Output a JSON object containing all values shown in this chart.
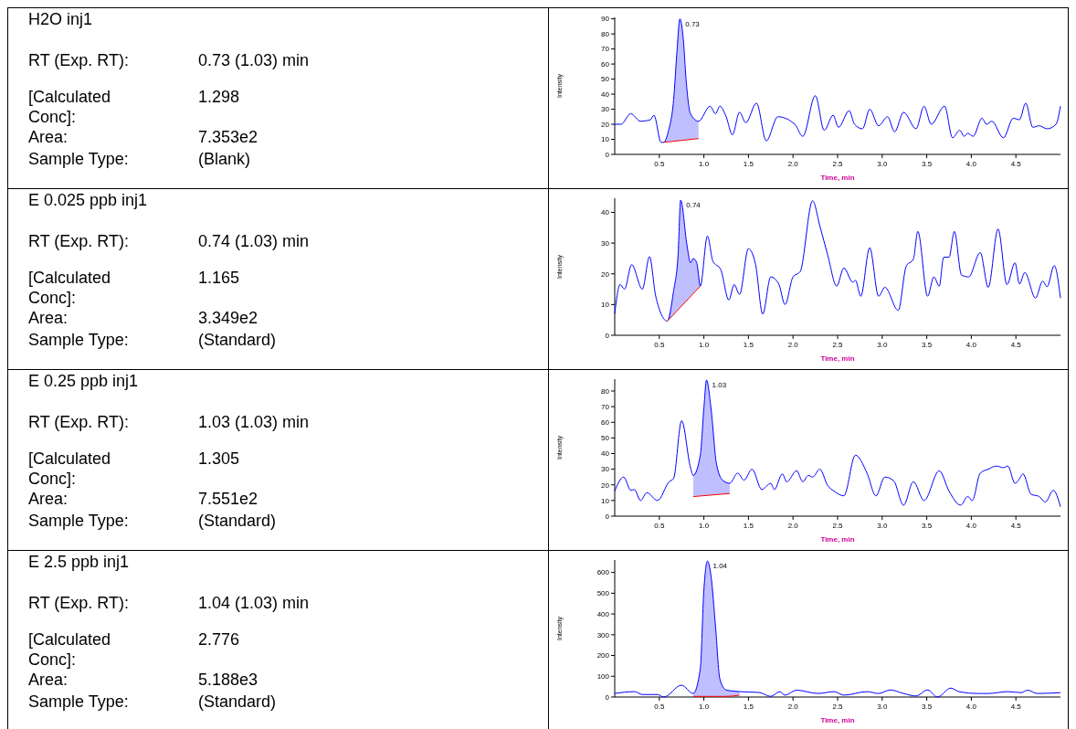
{
  "chart_data": [
    {
      "type": "other",
      "title": "H2O inj1",
      "annotations": [
        "RT (Exp. RT):",
        "0.73 (1.03) min",
        "[Calculated Conc]:",
        "1.298",
        "Area:",
        "7.353e2",
        "Sample Type:",
        "(Blank)"
      ]
    },
    {
      "type": "line",
      "xlabel": "Time, min",
      "ylabel": "Intensity",
      "xlim": [
        0,
        5
      ],
      "ylim": [
        0,
        91
      ],
      "xticks": [
        0.5,
        {
          "value": 1,
          "label": "1.0"
        },
        1.5,
        {
          "value": 2,
          "label": "2.0"
        },
        2.5,
        {
          "value": 3,
          "label": "3.0"
        },
        3.5,
        {
          "value": 4,
          "label": "4.0"
        },
        4.5
      ],
      "yticks": [
        0,
        10,
        20,
        30,
        40,
        50,
        60,
        70,
        80,
        90
      ],
      "annotations": [
        {
          "text": "0.73",
          "x": 0.73,
          "y": 90
        }
      ],
      "x": [
        0,
        0.07,
        0.18,
        0.29,
        0.4,
        0.44,
        0.52,
        0.55,
        0.6,
        0.66,
        0.7,
        0.73,
        0.77,
        0.8,
        0.85,
        0.94,
        1.07,
        1.13,
        1.18,
        1.25,
        1.32,
        1.4,
        1.47,
        1.59,
        1.7,
        1.83,
        2.02,
        2.11,
        2.25,
        2.35,
        2.45,
        2.51,
        2.63,
        2.69,
        2.78,
        2.86,
        2.96,
        3.06,
        3.14,
        3.24,
        3.38,
        3.47,
        3.55,
        3.7,
        3.79,
        3.87,
        3.92,
        3.96,
        4.02,
        4.12,
        4.17,
        4.23,
        4.36,
        4.47,
        4.54,
        4.61,
        4.69,
        4.76,
        4.85,
        4.95,
        5.0
      ],
      "series": [
        {
          "color": "#0000ff",
          "values": [
            20,
            20,
            27,
            22,
            23,
            26,
            8,
            8,
            15,
            36,
            70,
            90,
            76,
            50,
            27,
            22,
            32,
            27,
            32,
            25,
            13,
            28,
            21,
            34,
            9,
            25,
            20,
            12,
            39,
            16,
            26,
            18,
            29,
            20,
            17,
            30,
            19,
            25,
            15,
            28,
            17,
            32,
            20,
            32,
            11,
            16,
            12,
            14,
            12,
            24,
            20,
            22,
            11,
            24,
            23,
            34,
            18,
            19,
            17,
            20,
            32
          ]
        },
        {
          "type": "area",
          "color": "#0000ff",
          "x": [
            0.55,
            0.6,
            0.66,
            0.7,
            0.73,
            0.77,
            0.8,
            0.85,
            0.94
          ],
          "values": [
            8,
            15,
            36,
            70,
            90,
            76,
            50,
            27,
            22
          ]
        },
        {
          "type": "line",
          "color": "#ff0000",
          "x": [
            0.55,
            0.94
          ],
          "values": [
            8,
            10.5
          ]
        }
      ]
    },
    {
      "type": "other",
      "title": "E 0.025 ppb inj1",
      "annotations": [
        "RT (Exp. RT):",
        "0.74 (1.03) min",
        "[Calculated Conc]:",
        "1.165",
        "Area:",
        "3.349e2",
        "Sample Type:",
        "(Standard)"
      ]
    },
    {
      "type": "line",
      "xlabel": "Time, min",
      "ylabel": "Intensity",
      "xlim": [
        0,
        5
      ],
      "ylim": [
        0,
        44.6
      ],
      "xticks": [
        0.5,
        {
          "value": 1,
          "label": "1.0"
        },
        1.5,
        {
          "value": 2,
          "label": "2.0"
        },
        2.5,
        {
          "value": 3,
          "label": "3.0"
        },
        3.5,
        {
          "value": 4,
          "label": "4.0"
        },
        4.5
      ],
      "yticks": [
        0,
        10,
        20,
        30,
        40
      ],
      "annotations": [
        {
          "text": "0.74",
          "x": 0.74,
          "y": 44
        }
      ],
      "x": [
        0,
        0.06,
        0.11,
        0.19,
        0.31,
        0.39,
        0.46,
        0.59,
        0.66,
        0.71,
        0.74,
        0.81,
        0.85,
        0.88,
        0.92,
        0.96,
        1.04,
        1.1,
        1.19,
        1.28,
        1.34,
        1.4,
        1.5,
        1.58,
        1.66,
        1.75,
        1.84,
        1.91,
        2.0,
        2.08,
        2.22,
        2.3,
        2.39,
        2.49,
        2.57,
        2.67,
        2.7,
        2.76,
        2.86,
        2.96,
        3.03,
        3.18,
        3.27,
        3.35,
        3.4,
        3.51,
        3.58,
        3.64,
        3.69,
        3.75,
        3.81,
        3.89,
        3.97,
        4.1,
        4.19,
        4.3,
        4.4,
        4.49,
        4.54,
        4.6,
        4.72,
        4.8,
        4.85,
        4.93,
        5.0
      ],
      "series": [
        {
          "color": "#0000ff",
          "values": [
            7,
            16.5,
            15,
            23,
            15,
            25.6,
            12.7,
            4.6,
            14.4,
            26,
            44,
            29.4,
            23.6,
            25,
            23.6,
            16,
            32.3,
            24.2,
            21.3,
            11.5,
            16.5,
            13.3,
            28.2,
            23,
            6.9,
            19,
            16.7,
            10,
            19,
            20.7,
            43.8,
            35.7,
            26,
            16,
            21.9,
            17.3,
            17.9,
            12.7,
            28.5,
            12.7,
            15.6,
            8.1,
            22.5,
            24.8,
            33.8,
            12.7,
            19,
            16,
            25.4,
            25.4,
            33.8,
            19.6,
            19,
            26.9,
            15.6,
            34.6,
            16.5,
            23.6,
            16.7,
            20.4,
            12.1,
            17.6,
            15.8,
            22.7,
            12.1
          ]
        },
        {
          "type": "area",
          "color": "#0000ff",
          "x": [
            0.59,
            0.66,
            0.71,
            0.74,
            0.81,
            0.85,
            0.88,
            0.92,
            0.96
          ],
          "values": [
            4.6,
            14.4,
            26,
            44,
            29.4,
            23.6,
            25,
            23.6,
            16
          ]
        },
        {
          "type": "line",
          "color": "#ff0000",
          "x": [
            0.59,
            0.96
          ],
          "values": [
            4.6,
            16
          ]
        }
      ]
    },
    {
      "type": "other",
      "title": "E 0.25 ppb inj1",
      "annotations": [
        "RT (Exp. RT):",
        "1.03 (1.03) min",
        "[Calculated Conc]:",
        "1.305",
        "Area:",
        "7.551e2",
        "Sample Type:",
        "(Standard)"
      ]
    },
    {
      "type": "line",
      "xlabel": "Time, min",
      "ylabel": "Intensity",
      "xlim": [
        0,
        5
      ],
      "ylim": [
        0,
        87.6
      ],
      "xticks": [
        0.5,
        {
          "value": 1,
          "label": "1.0"
        },
        1.5,
        {
          "value": 2,
          "label": "2.0"
        },
        2.5,
        {
          "value": 3,
          "label": "3.0"
        },
        3.5,
        {
          "value": 4,
          "label": "4.0"
        },
        4.5
      ],
      "yticks": [
        0,
        10,
        20,
        30,
        40,
        50,
        60,
        70,
        80
      ],
      "annotations": [
        {
          "text": "1.03",
          "x": 1.03,
          "y": 87
        }
      ],
      "x": [
        0,
        0.1,
        0.18,
        0.22,
        0.29,
        0.36,
        0.48,
        0.61,
        0.66,
        0.75,
        0.85,
        0.88,
        0.96,
        1.0,
        1.03,
        1.08,
        1.14,
        1.21,
        1.29,
        1.38,
        1.45,
        1.54,
        1.65,
        1.75,
        1.79,
        1.88,
        1.93,
        2.04,
        2.11,
        2.17,
        2.22,
        2.3,
        2.39,
        2.46,
        2.57,
        2.7,
        2.83,
        2.93,
        3.03,
        3.13,
        3.24,
        3.35,
        3.47,
        3.64,
        3.75,
        3.88,
        3.96,
        4.01,
        4.1,
        4.19,
        4.28,
        4.36,
        4.41,
        4.49,
        4.53,
        4.58,
        4.67,
        4.76,
        4.83,
        4.92,
        5.0
      ],
      "series": [
        {
          "color": "#0000ff",
          "values": [
            16,
            25,
            16.5,
            17,
            10,
            15,
            10,
            22,
            24,
            61,
            31,
            26,
            39,
            69,
            87,
            69,
            34,
            23,
            21,
            27.5,
            23,
            30,
            17,
            21,
            17,
            27,
            22,
            29,
            22,
            26,
            25,
            30,
            19.5,
            16,
            13,
            39,
            27.5,
            13,
            25,
            22.5,
            7,
            22,
            10,
            29,
            16,
            7,
            12.6,
            10,
            27.5,
            30,
            32,
            31,
            32,
            21,
            23,
            27,
            14,
            12.6,
            9,
            16.5,
            6
          ]
        },
        {
          "type": "area",
          "color": "#0000ff",
          "x": [
            0.88,
            0.96,
            1.0,
            1.03,
            1.08,
            1.14,
            1.21,
            1.29
          ],
          "values": [
            26,
            39,
            69,
            87,
            69,
            34,
            23,
            21
          ]
        },
        {
          "type": "line",
          "color": "#ff0000",
          "x": [
            0.88,
            1.29
          ],
          "values": [
            12.5,
            14.5
          ]
        }
      ]
    },
    {
      "type": "other",
      "title": "E 2.5 ppb inj1",
      "annotations": [
        "RT (Exp. RT):",
        "1.04 (1.03) min",
        "[Calculated Conc]:",
        "2.776",
        "Area:",
        "5.188e3",
        "Sample Type:",
        "(Standard)"
      ]
    },
    {
      "type": "line",
      "xlabel": "Time, min",
      "ylabel": "Intensity",
      "xlim": [
        0,
        5
      ],
      "ylim": [
        0,
        660
      ],
      "xticks": [
        0.5,
        {
          "value": 1,
          "label": "1.0"
        },
        1.5,
        {
          "value": 2,
          "label": "2.0"
        },
        2.5,
        {
          "value": 3,
          "label": "3.0"
        },
        3.5,
        {
          "value": 4,
          "label": "4.0"
        },
        4.5
      ],
      "yticks": [
        0,
        100,
        200,
        300,
        400,
        500,
        600
      ],
      "annotations": [
        {
          "text": "1.04",
          "x": 1.04,
          "y": 655
        }
      ],
      "x": [
        0,
        0.22,
        0.31,
        0.48,
        0.55,
        0.75,
        0.88,
        0.96,
        1.0,
        1.04,
        1.08,
        1.13,
        1.18,
        1.25,
        1.4,
        1.62,
        1.75,
        1.85,
        1.91,
        2.04,
        2.28,
        2.46,
        2.57,
        2.83,
        2.96,
        3.09,
        3.24,
        3.38,
        3.51,
        3.62,
        3.77,
        3.86,
        4.08,
        4.19,
        4.41,
        4.56,
        4.63,
        4.74,
        5.0
      ],
      "series": [
        {
          "color": "#0000ff",
          "values": [
            17,
            26,
            12,
            12,
            0,
            57,
            17,
            137,
            515,
            655,
            583,
            343,
            86,
            34,
            26,
            22,
            3,
            26,
            9,
            33,
            17,
            26,
            9,
            26,
            17,
            34,
            17,
            5,
            34,
            0,
            43,
            26,
            17,
            17,
            26,
            21,
            33,
            17,
            21
          ]
        },
        {
          "type": "area",
          "color": "#0000ff",
          "x": [
            0.88,
            0.96,
            1.0,
            1.04,
            1.08,
            1.13,
            1.18,
            1.25,
            1.4
          ],
          "values": [
            17,
            137,
            515,
            655,
            583,
            343,
            86,
            34,
            26
          ]
        },
        {
          "type": "line",
          "color": "#ff0000",
          "x": [
            0.88,
            1.25,
            1.4
          ],
          "values": [
            3,
            3,
            9
          ]
        }
      ]
    }
  ]
}
